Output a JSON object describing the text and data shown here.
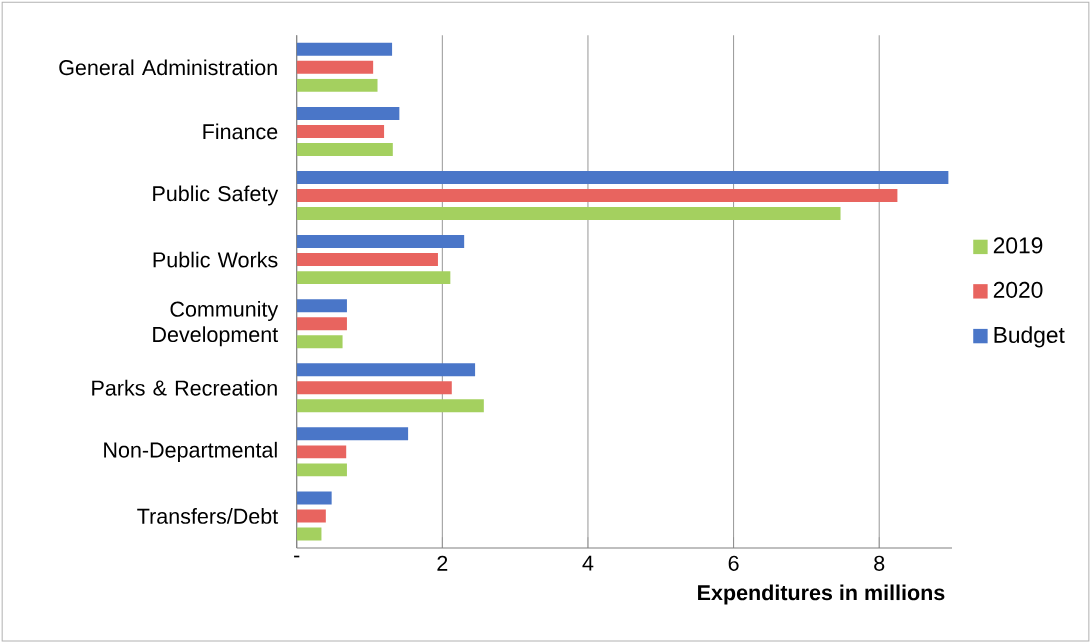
{
  "chart_data": {
    "type": "bar",
    "orientation": "horizontal",
    "xlabel": "Expenditures in millions",
    "categories": [
      "General Administration",
      "Finance",
      "Public Safety",
      "Public Works",
      "Community Development",
      "Parks & Recreation",
      "Non-Departmental",
      "Transfers/Debt"
    ],
    "series": [
      {
        "name": "2019",
        "color": "#a4d05f",
        "values": [
          1.11,
          1.32,
          7.47,
          2.11,
          0.63,
          2.57,
          0.69,
          0.34
        ]
      },
      {
        "name": "2020",
        "color": "#e8645f",
        "values": [
          1.05,
          1.2,
          8.25,
          1.94,
          0.69,
          2.13,
          0.68,
          0.4
        ]
      },
      {
        "name": "Budget",
        "color": "#4a76c8",
        "values": [
          1.31,
          1.41,
          8.95,
          2.3,
          0.69,
          2.45,
          1.53,
          0.48
        ]
      }
    ],
    "xlim": [
      0,
      9
    ],
    "xticks": [
      {
        "value": 0,
        "label": "-"
      },
      2,
      4,
      6,
      8
    ],
    "grid": "x",
    "legend": "right"
  }
}
